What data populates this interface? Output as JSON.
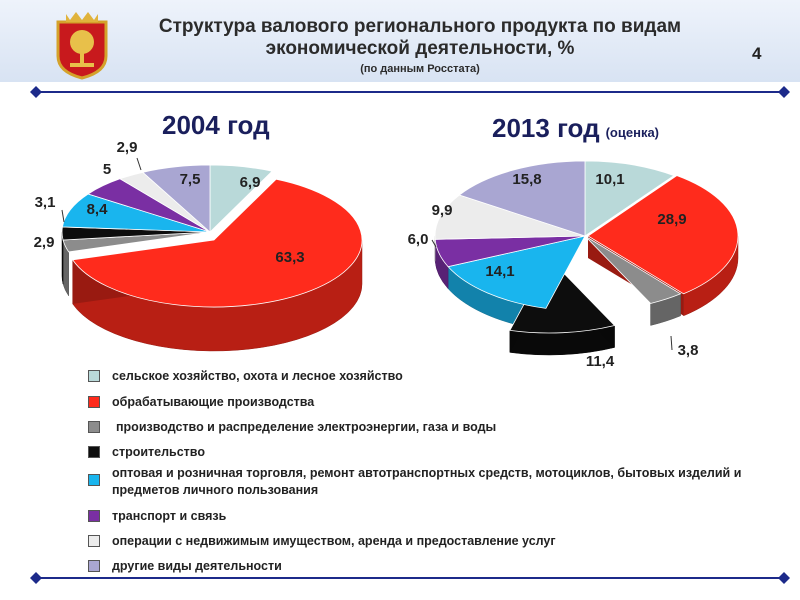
{
  "header": {
    "title": "Структура валового регионального продукта по видам экономической деятельности, %",
    "subtitle": "(по данным Росстата)",
    "page_number": "4"
  },
  "colors": {
    "agriculture": "#b9d9d9",
    "manufacturing": "#ff2b1c",
    "energy": "#8c8c8c",
    "construction": "#0d0d0d",
    "trade": "#19b5ee",
    "transport": "#7a2fa3",
    "realestate": "#ececec",
    "other": "#a9a6d2",
    "title_blue": "#1a1f5c",
    "divider": "#1c2a8a"
  },
  "legend": [
    {
      "key": "agriculture",
      "label": "сельское хозяйство, охота и лесное хозяйство"
    },
    {
      "key": "manufacturing",
      "label": "обрабатывающие производства"
    },
    {
      "key": "energy",
      "label": "производство и распределение электроэнергии, газа и воды"
    },
    {
      "key": "construction",
      "label": "строительство"
    },
    {
      "key": "trade",
      "label": "оптовая и розничная торговля, ремонт автотранспортных средств, мотоциклов, бытовых изделий и предметов личного пользования"
    },
    {
      "key": "transport",
      "label": "транспорт и связь"
    },
    {
      "key": "realestate",
      "label": "операции с недвижимым имуществом, аренда и предоставление услуг"
    },
    {
      "key": "other",
      "label": "другие виды деятельности"
    }
  ],
  "chart_data": [
    {
      "type": "pie",
      "title": "2004 год",
      "note": "",
      "slices": [
        {
          "key": "agriculture",
          "value": 6.9,
          "label": "6,9"
        },
        {
          "key": "manufacturing",
          "value": 63.3,
          "label": "63,3"
        },
        {
          "key": "energy",
          "value": 2.9,
          "label": "2,9"
        },
        {
          "key": "construction",
          "value": 3.1,
          "label": "3,1"
        },
        {
          "key": "trade",
          "value": 8.4,
          "label": "8,4"
        },
        {
          "key": "transport",
          "value": 5.0,
          "label": "5"
        },
        {
          "key": "realestate",
          "value": 2.9,
          "label": "2,9"
        },
        {
          "key": "other",
          "value": 7.5,
          "label": "7,5"
        }
      ]
    },
    {
      "type": "pie",
      "title": "2013 год",
      "note": "(оценка)",
      "slices": [
        {
          "key": "agriculture",
          "value": 10.1,
          "label": "10,1"
        },
        {
          "key": "manufacturing",
          "value": 28.9,
          "label": "28,9"
        },
        {
          "key": "energy",
          "value": 3.8,
          "label": "3,8"
        },
        {
          "key": "construction",
          "value": 11.4,
          "label": "11,4"
        },
        {
          "key": "trade",
          "value": 14.1,
          "label": "14,1"
        },
        {
          "key": "transport",
          "value": 6.0,
          "label": "6,0"
        },
        {
          "key": "realestate",
          "value": 9.9,
          "label": "9,9"
        },
        {
          "key": "other",
          "value": 15.8,
          "label": "15,8"
        }
      ]
    }
  ]
}
